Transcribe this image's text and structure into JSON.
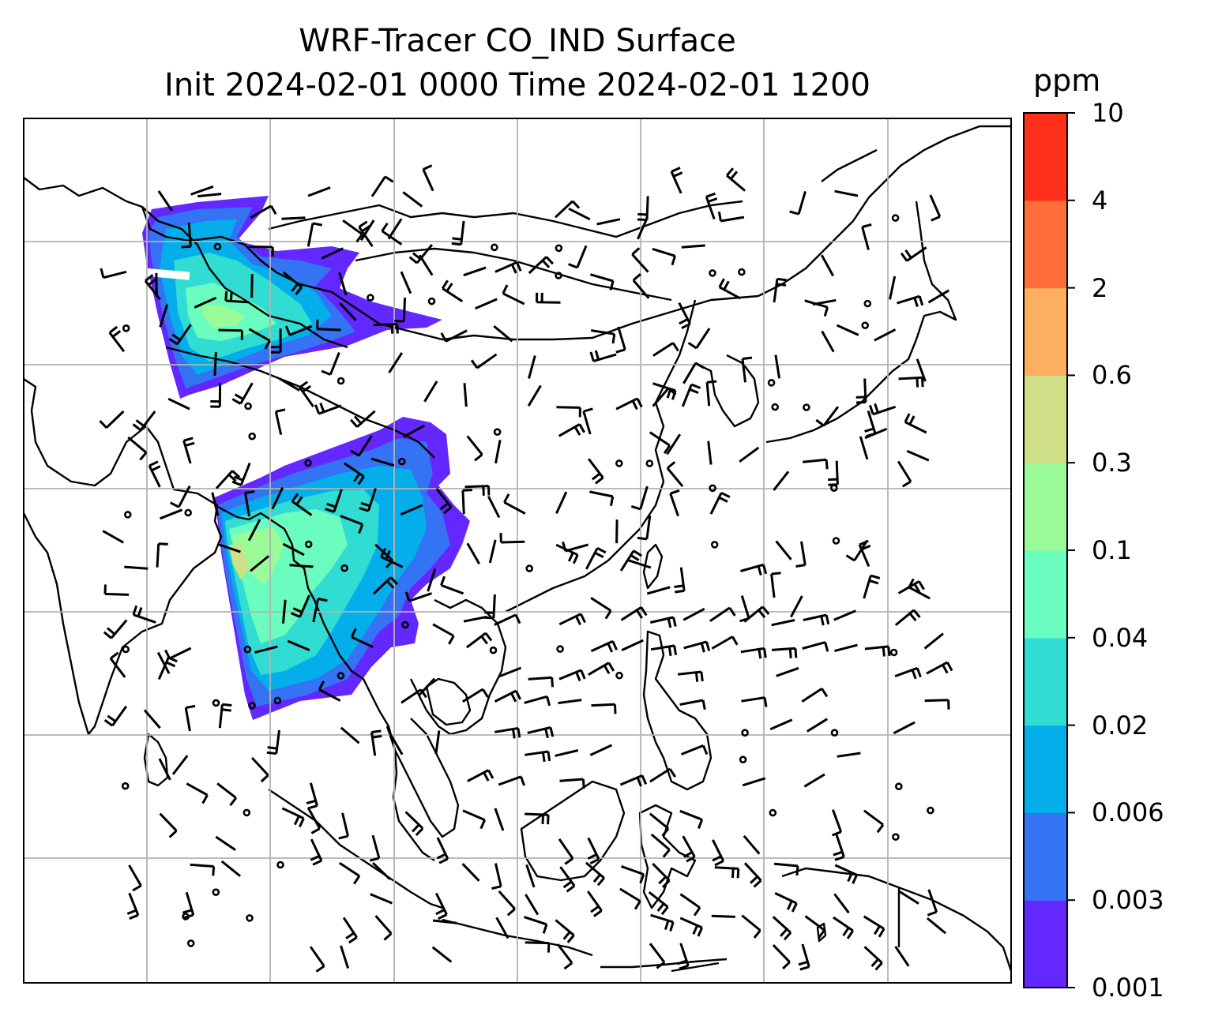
{
  "title": {
    "line1": "WRF-Tracer CO_IND Surface",
    "line2": "Init 2024-02-01 0000 Time 2024-02-01 1200"
  },
  "colorbar": {
    "unit": "ppm",
    "ticks": [
      "0.001",
      "0.003",
      "0.006",
      "0.02",
      "0.04",
      "0.1",
      "0.3",
      "0.6",
      "2",
      "4",
      "10"
    ],
    "colors": [
      "#6328ff",
      "#3373f4",
      "#03aeeb",
      "#31dcd3",
      "#6bfdbf",
      "#9afb98",
      "#cfe089",
      "#feae60",
      "#fe6d3a",
      "#ff2f19"
    ]
  },
  "map": {
    "gridlines": true,
    "tracer_fill_colors": {
      "lowest": "#6328ff",
      "low": "#3373f4",
      "mid_low": "#03aeeb",
      "mid": "#31dcd3",
      "mid_high": "#6bfdbf",
      "high": "#9afb98",
      "highest": "#cfe089"
    }
  }
}
